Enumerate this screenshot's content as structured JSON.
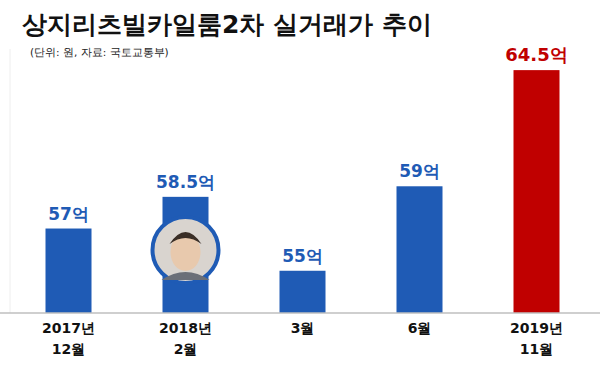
{
  "chart_data": {
    "type": "bar",
    "title": "상지리츠빌카일룸2차 실거래가 추이",
    "subtitle": "(단위: 원, 자료: 국토교통부)",
    "categories": [
      "2017년\n12월",
      "2018년\n2월",
      "3월",
      "6월",
      "2019년\n11월"
    ],
    "values": [
      57,
      58.5,
      55,
      59,
      64.5
    ],
    "value_labels": [
      "57억",
      "58.5억",
      "55억",
      "59억",
      "64.5억"
    ],
    "colors": [
      "#1f5bb5",
      "#1f5bb5",
      "#1f5bb5",
      "#1f5bb5",
      "#c00000"
    ],
    "ylim": [
      53,
      65.5
    ],
    "data_labels": true,
    "tick_labels": "x",
    "grid": false
  }
}
